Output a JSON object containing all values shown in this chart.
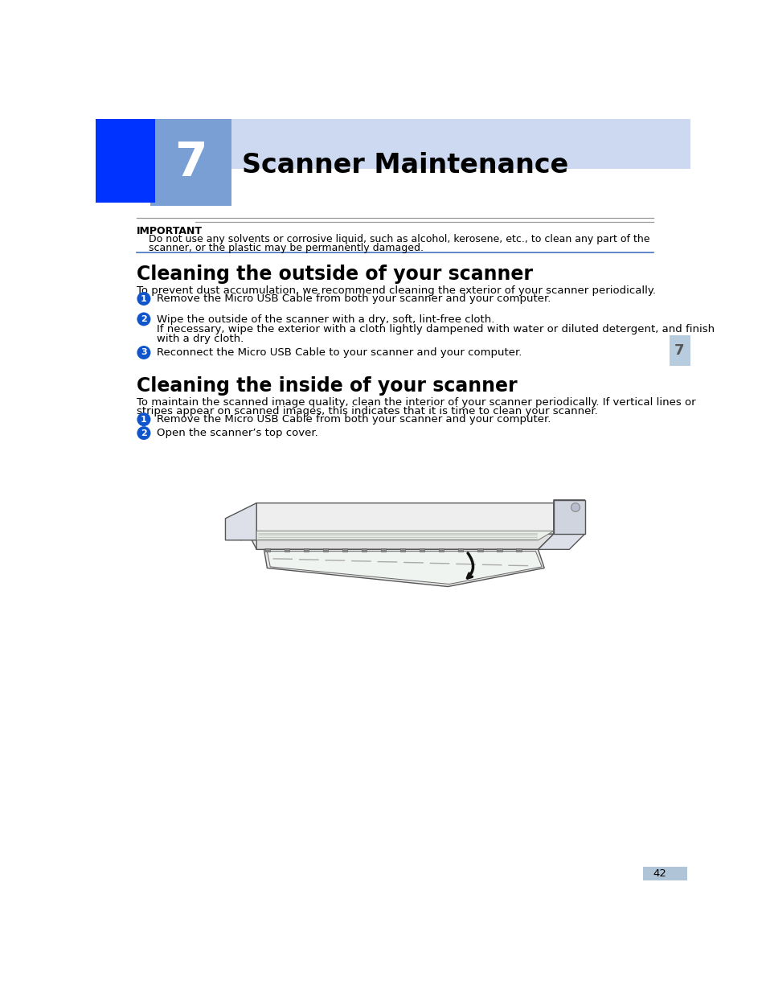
{
  "page_bg": "#ffffff",
  "header_light_blue": "#ccd9f0",
  "header_dark_blue": "#0033ff",
  "header_medium_blue": "#7a9fd4",
  "chapter_num": "7",
  "chapter_title": "Scanner Maintenance",
  "important_label": "IMPORTANT",
  "important_line1": "Do not use any solvents or corrosive liquid, such as alcohol, kerosene, etc., to clean any part of the",
  "important_line2": "scanner, or the plastic may be permanently damaged.",
  "section1_title": "Cleaning the outside of your scanner",
  "section1_intro": "To prevent dust accumulation, we recommend cleaning the exterior of your scanner periodically.",
  "s1_step1": "Remove the Micro USB Cable from both your scanner and your computer.",
  "s1_step2a": "Wipe the outside of the scanner with a dry, soft, lint-free cloth.",
  "s1_step2b": "If necessary, wipe the exterior with a cloth lightly dampened with water or diluted detergent, and finish",
  "s1_step2c": "with a dry cloth.",
  "s1_step3": "Reconnect the Micro USB Cable to your scanner and your computer.",
  "section2_title": "Cleaning the inside of your scanner",
  "section2_intro1": "To maintain the scanned image quality, clean the interior of your scanner periodically. If vertical lines or",
  "section2_intro2": "stripes appear on scanned images, this indicates that it is time to clean your scanner.",
  "s2_step1": "Remove the Micro USB Cable from both your scanner and your computer.",
  "s2_step2": "Open the scanner’s top cover.",
  "side_tab_num": "7",
  "page_num": "42",
  "accent_blue": "#1155cc",
  "line_blue": "#4472c4",
  "text_color": "#000000",
  "step_circle_color": "#1155cc",
  "gray_line": "#999999"
}
